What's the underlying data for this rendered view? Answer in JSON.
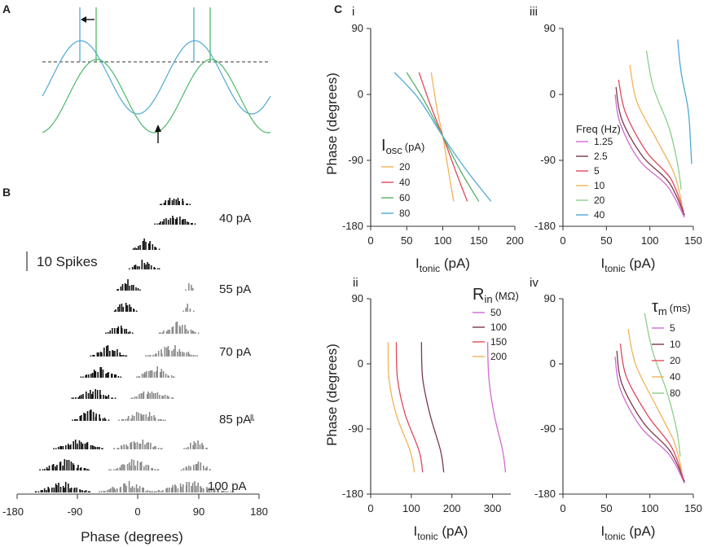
{
  "panel_labels": {
    "A": "A",
    "B": "B",
    "C": "C"
  },
  "panel_a": {
    "series": [
      {
        "name": "blue",
        "color": "#4ea9d6"
      },
      {
        "name": "green",
        "color": "#4db86a"
      }
    ],
    "threshold_style": "dashed",
    "arrows": [
      "left-arrow",
      "up-arrow"
    ]
  },
  "panel_b": {
    "scale_bar": "10 Spikes",
    "x_ticks": [
      "-180",
      "-90",
      "0",
      "90",
      "180"
    ],
    "xlabel": "Phase (degrees)",
    "row_labels": [
      "40 pA",
      "55 pA",
      "70 pA",
      "85 pA",
      "100 pA"
    ],
    "colors": {
      "primary": "#111111",
      "secondary": "#8a8a8a"
    }
  },
  "subpanels": {
    "i": "i",
    "ii": "ii",
    "iii": "iii",
    "iv": "iv"
  },
  "shared": {
    "ylabel": "Phase (degrees)",
    "xlabel_main": "I",
    "xlabel_sub": "tonic",
    "xlabel_tail": " (pA)"
  },
  "chart_data": [
    {
      "id": "Ci",
      "type": "line",
      "title": "i",
      "xlabel": "Itonic (pA)",
      "ylabel": "Phase (degrees)",
      "xlim": [
        0,
        200
      ],
      "ylim": [
        -180,
        90
      ],
      "x_ticks": [
        "0",
        "50",
        "100",
        "150",
        "200"
      ],
      "y_ticks": [
        "90",
        "0",
        "-90",
        "-180"
      ],
      "legend_title_main": "I",
      "legend_title_sub": "osc",
      "legend_title_unit": "(pA)",
      "series": [
        {
          "name": "20",
          "color": "#f2b25a",
          "x": [
            84,
            92,
            100,
            108,
            115
          ],
          "y": [
            30,
            -20,
            -57,
            -105,
            -146
          ]
        },
        {
          "name": "40",
          "color": "#e0495a",
          "x": [
            67,
            83,
            100,
            118,
            134
          ],
          "y": [
            30,
            -15,
            -57,
            -105,
            -146
          ]
        },
        {
          "name": "60",
          "color": "#58b068",
          "x": [
            50,
            75,
            100,
            125,
            150
          ],
          "y": [
            30,
            -10,
            -57,
            -105,
            -146
          ]
        },
        {
          "name": "80",
          "color": "#4ea9d6",
          "x": [
            33,
            66,
            100,
            134,
            167
          ],
          "y": [
            30,
            -5,
            -57,
            -105,
            -146
          ]
        }
      ]
    },
    {
      "id": "Cii",
      "type": "line",
      "title": "ii",
      "xlabel": "Itonic (pA)",
      "ylabel": "Phase (degrees)",
      "xlim": [
        0,
        345
      ],
      "ylim": [
        -180,
        90
      ],
      "x_ticks": [
        "0",
        "100",
        "200",
        "300"
      ],
      "y_ticks": [
        "90",
        "0",
        "-90",
        "-180"
      ],
      "legend_title_main": "R",
      "legend_title_sub": "in",
      "legend_title_unit": "(MΩ)",
      "series": [
        {
          "name": "50",
          "color": "#d06ad6",
          "x": [
            288,
            291,
            304,
            325,
            332
          ],
          "y": [
            30,
            -20,
            -70,
            -120,
            -150
          ]
        },
        {
          "name": "100",
          "color": "#7a3a4a",
          "x": [
            125,
            128,
            146,
            172,
            180
          ],
          "y": [
            30,
            -20,
            -70,
            -120,
            -150
          ]
        },
        {
          "name": "150",
          "color": "#e0495a",
          "x": [
            63,
            66,
            85,
            119,
            128
          ],
          "y": [
            30,
            -20,
            -70,
            -120,
            -150
          ]
        },
        {
          "name": "200",
          "color": "#f2b25a",
          "x": [
            43,
            45,
            63,
            97,
            108
          ],
          "y": [
            30,
            -20,
            -70,
            -120,
            -150
          ]
        }
      ]
    },
    {
      "id": "Ciii",
      "type": "line",
      "title": "iii",
      "xlabel": "Itonic (pA)",
      "ylabel": "",
      "xlim": [
        0,
        150
      ],
      "ylim": [
        -180,
        90
      ],
      "x_ticks": [
        "0",
        "50",
        "100",
        "150"
      ],
      "y_ticks": [
        "90",
        "0",
        "-90",
        "-180"
      ],
      "legend_title_main": "Freq (Hz)",
      "series": [
        {
          "name": "1.25",
          "color": "#d06ad6",
          "x": [
            60,
            66,
            88,
            120,
            140
          ],
          "y": [
            0,
            -40,
            -90,
            -125,
            -168
          ]
        },
        {
          "name": "2.5",
          "color": "#7a3a4a",
          "x": [
            61,
            68,
            92,
            122,
            140
          ],
          "y": [
            10,
            -35,
            -85,
            -120,
            -165
          ]
        },
        {
          "name": "5",
          "color": "#e0495a",
          "x": [
            64,
            72,
            96,
            124,
            139
          ],
          "y": [
            20,
            -25,
            -78,
            -115,
            -160
          ]
        },
        {
          "name": "10",
          "color": "#f2b25a",
          "x": [
            77,
            85,
            108,
            128,
            137
          ],
          "y": [
            40,
            -10,
            -62,
            -108,
            -150
          ]
        },
        {
          "name": "20",
          "color": "#8ccf8a",
          "x": [
            96,
            104,
            122,
            132,
            136
          ],
          "y": [
            60,
            10,
            -45,
            -95,
            -130
          ]
        },
        {
          "name": "40",
          "color": "#4ea9d6",
          "x": [
            132,
            136,
            144,
            147,
            148
          ],
          "y": [
            75,
            30,
            -20,
            -70,
            -95
          ]
        }
      ]
    },
    {
      "id": "Civ",
      "type": "line",
      "title": "iv",
      "xlabel": "Itonic (pA)",
      "ylabel": "",
      "xlim": [
        0,
        150
      ],
      "ylim": [
        -180,
        90
      ],
      "x_ticks": [
        "0",
        "50",
        "100",
        "150"
      ],
      "y_ticks": [
        "90",
        "0",
        "-90",
        "-180"
      ],
      "legend_title_main": "τ",
      "legend_title_sub": "m",
      "legend_title_unit": "(ms)",
      "series": [
        {
          "name": "5",
          "color": "#d06ad6",
          "x": [
            60,
            66,
            90,
            122,
            140
          ],
          "y": [
            10,
            -35,
            -88,
            -125,
            -165
          ]
        },
        {
          "name": "10",
          "color": "#7a3a4a",
          "x": [
            62,
            68,
            93,
            123,
            140
          ],
          "y": [
            18,
            -28,
            -82,
            -120,
            -163
          ]
        },
        {
          "name": "20",
          "color": "#e0495a",
          "x": [
            66,
            73,
            98,
            125,
            139
          ],
          "y": [
            28,
            -18,
            -72,
            -115,
            -160
          ]
        },
        {
          "name": "40",
          "color": "#f2b25a",
          "x": [
            75,
            84,
            108,
            128,
            137
          ],
          "y": [
            48,
            -2,
            -60,
            -108,
            -150
          ]
        },
        {
          "name": "80",
          "color": "#8ccf8a",
          "x": [
            94,
            103,
            120,
            131,
            135
          ],
          "y": [
            70,
            18,
            -40,
            -92,
            -128
          ]
        }
      ]
    }
  ]
}
